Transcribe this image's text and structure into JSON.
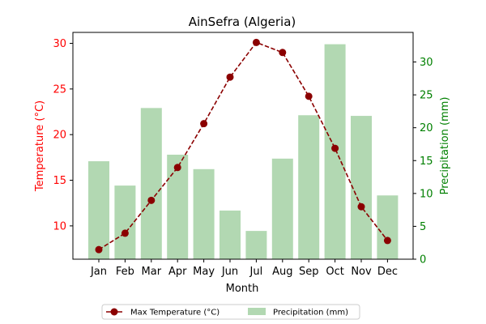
{
  "chart_data": {
    "type": "bar",
    "title": "AinSefra (Algeria)",
    "xlabel": "Month",
    "categories": [
      "Jan",
      "Feb",
      "Mar",
      "Apr",
      "May",
      "Jun",
      "Jul",
      "Aug",
      "Sep",
      "Oct",
      "Nov",
      "Dec"
    ],
    "series": [
      {
        "name": "Max Temperature (°C)",
        "type": "line",
        "axis": "left",
        "color": "#8b0000",
        "values": [
          7.4,
          9.2,
          12.8,
          16.4,
          21.2,
          26.3,
          30.1,
          29.0,
          24.2,
          18.5,
          12.1,
          8.4
        ]
      },
      {
        "name": "Precipitation (mm)",
        "type": "bar",
        "axis": "right",
        "color": "#b2d8b2",
        "values": [
          14.9,
          11.2,
          23.0,
          15.9,
          13.7,
          7.4,
          4.3,
          15.3,
          21.9,
          32.7,
          21.8,
          9.7
        ]
      }
    ],
    "y_left": {
      "label": "Temperature (°C)",
      "color": "#ff0000",
      "range": [
        6.35,
        31.2
      ],
      "ticks": [
        10,
        15,
        20,
        25,
        30
      ]
    },
    "y_right": {
      "label": "Precipitation (mm)",
      "color": "#008000",
      "range": [
        0,
        34.5
      ],
      "ticks": [
        0,
        5,
        10,
        15,
        20,
        25,
        30
      ]
    },
    "grid": false,
    "legend_position": "bottom-center"
  }
}
